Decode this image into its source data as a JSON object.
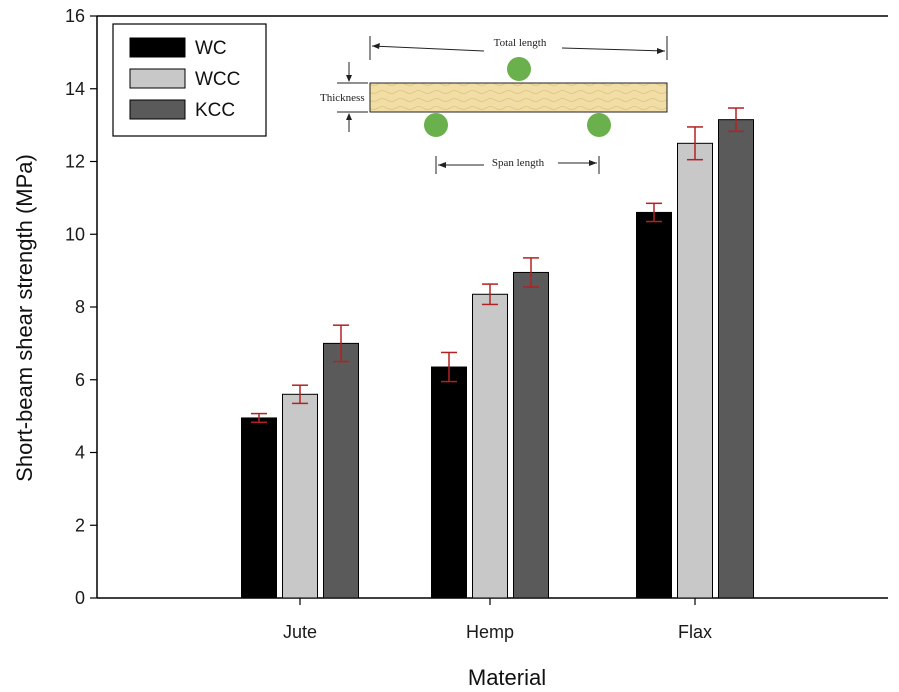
{
  "chart_data": {
    "type": "bar",
    "xlabel": "Material",
    "ylabel": "Short-beam shear strength (MPa)",
    "categories": [
      "Jute",
      "Hemp",
      "Flax"
    ],
    "ylim": [
      0,
      16
    ],
    "yticks": [
      0,
      2,
      4,
      6,
      8,
      10,
      12,
      14,
      16
    ],
    "series": [
      {
        "name": "WC",
        "color": "#000000",
        "values": [
          4.95,
          6.35,
          10.6
        ],
        "errors": [
          0.12,
          0.4,
          0.25
        ]
      },
      {
        "name": "WCC",
        "color": "#c8c8c8",
        "values": [
          5.6,
          8.35,
          12.5
        ],
        "errors": [
          0.25,
          0.28,
          0.45
        ]
      },
      {
        "name": "KCC",
        "color": "#5a5a5a",
        "values": [
          7.0,
          8.95,
          13.15
        ],
        "errors": [
          0.5,
          0.4,
          0.32
        ]
      }
    ],
    "error_bar_color": "#b22222",
    "legend_position": "top-left",
    "grid": false,
    "inset": {
      "description_labels": {
        "total_length": "Total length",
        "thickness": "Thickness",
        "span_length": "Span length"
      },
      "specimen_color": "#f0dca0",
      "support_color": "#6ab04c"
    }
  }
}
